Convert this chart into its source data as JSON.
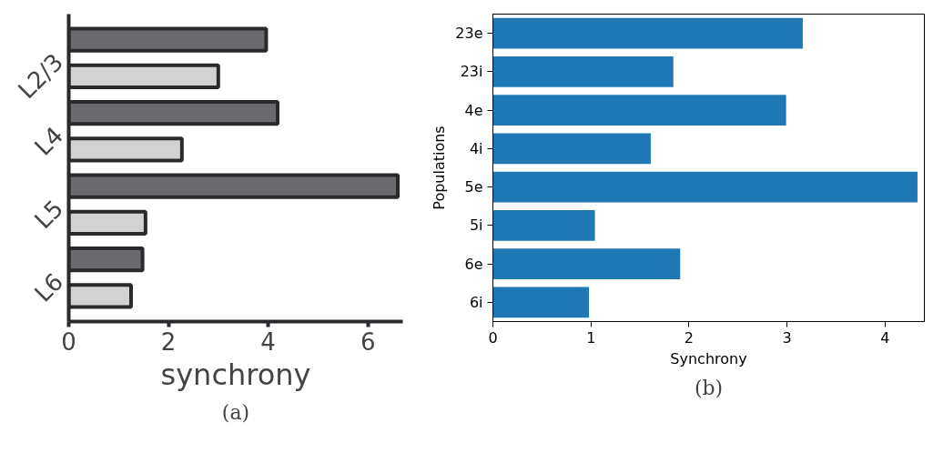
{
  "chart_data": [
    {
      "type": "bar",
      "orientation": "horizontal",
      "title": "(a)",
      "xlabel": "synchrony",
      "categories": [
        "L2/3",
        "L4",
        "L5",
        "L6"
      ],
      "series": [
        {
          "color": "#6b6b6d",
          "values": [
            3.96,
            4.19,
            6.6,
            1.48
          ]
        },
        {
          "color": "#d2d2d2",
          "values": [
            3.0,
            2.27,
            1.54,
            1.25
          ]
        }
      ],
      "xlim": [
        0,
        6.7
      ],
      "xticks": [
        0,
        2,
        4,
        6
      ],
      "grid": false
    },
    {
      "type": "bar",
      "orientation": "horizontal",
      "title": "(b)",
      "xlabel": "Synchrony",
      "ylabel": "Populations",
      "categories": [
        "23e",
        "23i",
        "4e",
        "4i",
        "5e",
        "5i",
        "6e",
        "6i"
      ],
      "values": [
        3.16,
        1.84,
        2.99,
        1.61,
        4.33,
        1.04,
        1.91,
        0.98
      ],
      "color": "#1f77b4",
      "xlim": [
        0,
        4.4
      ],
      "xticks": [
        0,
        1,
        2,
        3,
        4
      ],
      "grid": false
    }
  ]
}
